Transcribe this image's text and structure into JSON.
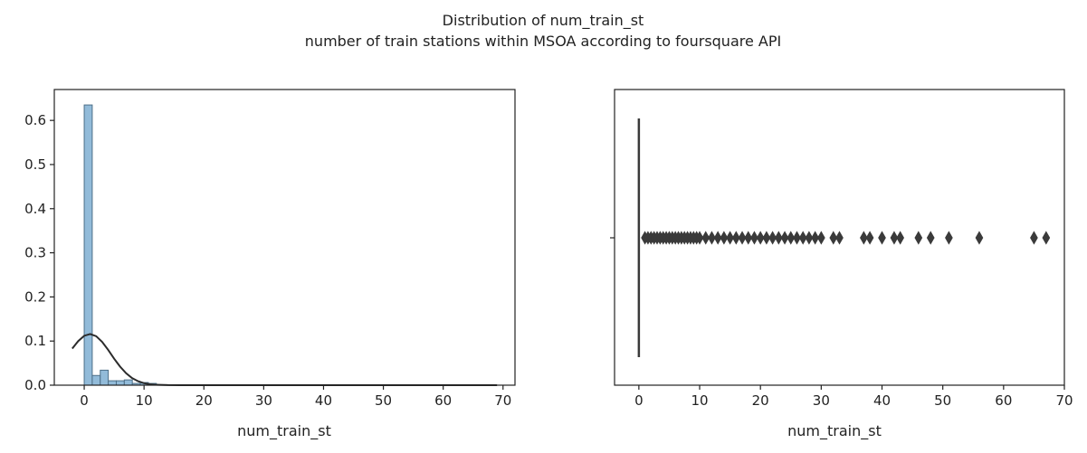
{
  "figure": {
    "title_line1": "Distribution of num_train_st",
    "title_line2": "number of train stations within MSOA according to foursquare API"
  },
  "chart_data": [
    {
      "type": "bar",
      "subtype": "histogram_with_kde",
      "xlabel": "num_train_st",
      "ylabel": "",
      "xlim": [
        -5,
        72
      ],
      "ylim": [
        0,
        0.67
      ],
      "xticks": [
        0,
        10,
        20,
        30,
        40,
        50,
        60,
        70
      ],
      "yticks": [
        0.0,
        0.1,
        0.2,
        0.3,
        0.4,
        0.5,
        0.6
      ],
      "bin_width": 1.34,
      "bins": [
        {
          "x0": 0.0,
          "x1": 1.34,
          "density": 0.635
        },
        {
          "x0": 1.34,
          "x1": 2.68,
          "density": 0.022
        },
        {
          "x0": 2.68,
          "x1": 4.02,
          "density": 0.034
        },
        {
          "x0": 4.02,
          "x1": 5.36,
          "density": 0.01
        },
        {
          "x0": 5.36,
          "x1": 6.7,
          "density": 0.01
        },
        {
          "x0": 6.7,
          "x1": 8.04,
          "density": 0.012
        },
        {
          "x0": 8.04,
          "x1": 9.38,
          "density": 0.004
        },
        {
          "x0": 9.38,
          "x1": 10.72,
          "density": 0.006
        },
        {
          "x0": 10.72,
          "x1": 12.06,
          "density": 0.004
        },
        {
          "x0": 12.06,
          "x1": 13.4,
          "density": 0.001
        },
        {
          "x0": 13.4,
          "x1": 14.74,
          "density": 0.001
        },
        {
          "x0": 14.74,
          "x1": 16.08,
          "density": 0.001
        },
        {
          "x0": 16.08,
          "x1": 17.42,
          "density": 0.0005
        },
        {
          "x0": 17.42,
          "x1": 18.76,
          "density": 0.0005
        },
        {
          "x0": 18.76,
          "x1": 20.1,
          "density": 0.0005
        },
        {
          "x0": 20.1,
          "x1": 21.44,
          "density": 0.0005
        },
        {
          "x0": 21.44,
          "x1": 22.78,
          "density": 0.0005
        },
        {
          "x0": 22.78,
          "x1": 24.12,
          "density": 0.0005
        },
        {
          "x0": 24.12,
          "x1": 25.46,
          "density": 0.0004
        },
        {
          "x0": 25.46,
          "x1": 26.8,
          "density": 0.0004
        },
        {
          "x0": 26.8,
          "x1": 28.14,
          "density": 0.0003
        },
        {
          "x0": 28.14,
          "x1": 29.48,
          "density": 0.0003
        },
        {
          "x0": 29.48,
          "x1": 30.82,
          "density": 0.0003
        },
        {
          "x0": 30.82,
          "x1": 32.16,
          "density": 0.0002
        },
        {
          "x0": 32.16,
          "x1": 33.5,
          "density": 0.0002
        },
        {
          "x0": 36.18,
          "x1": 37.52,
          "density": 0.0002
        },
        {
          "x0": 37.52,
          "x1": 38.86,
          "density": 0.0002
        },
        {
          "x0": 40.2,
          "x1": 41.54,
          "density": 0.0002
        },
        {
          "x0": 41.54,
          "x1": 42.88,
          "density": 0.0002
        },
        {
          "x0": 45.56,
          "x1": 46.9,
          "density": 0.0002
        },
        {
          "x0": 46.9,
          "x1": 48.24,
          "density": 0.0002
        },
        {
          "x0": 50.26,
          "x1": 51.6,
          "density": 0.0002
        },
        {
          "x0": 55.62,
          "x1": 56.96,
          "density": 0.0002
        },
        {
          "x0": 64.0,
          "x1": 65.34,
          "density": 0.0002
        },
        {
          "x0": 66.68,
          "x1": 68.02,
          "density": 0.0002
        }
      ],
      "kde": {
        "x": [
          -2,
          -1,
          0,
          1,
          2,
          3,
          4,
          5,
          6,
          7,
          8,
          9,
          10,
          11,
          12,
          14,
          16,
          20,
          30,
          40,
          50,
          60,
          69
        ],
        "y": [
          0.083,
          0.1,
          0.112,
          0.116,
          0.111,
          0.098,
          0.08,
          0.06,
          0.042,
          0.027,
          0.016,
          0.009,
          0.0045,
          0.002,
          0.0009,
          0.0002,
          0.0001,
          0.0,
          0.0,
          0.0,
          0.0,
          0.0,
          0.0
        ]
      },
      "colors": {
        "bar": "#92bbd9",
        "bar_edge": "#4d6f88",
        "kde": "#2b2b2b"
      }
    },
    {
      "type": "scatter",
      "subtype": "boxplot",
      "xlabel": "num_train_st",
      "xlim": [
        -4,
        70
      ],
      "xticks": [
        0,
        10,
        20,
        30,
        40,
        50,
        60,
        70
      ],
      "box": {
        "min": 0,
        "q1": 0,
        "median": 0,
        "q3": 0,
        "max": 0
      },
      "outliers": [
        1,
        1.5,
        2,
        2.5,
        3,
        3.5,
        4,
        4.5,
        5,
        5.5,
        6,
        6.5,
        7,
        7.5,
        8,
        8.5,
        9,
        9.5,
        10,
        11,
        12,
        13,
        14,
        15,
        16,
        17,
        18,
        19,
        20,
        21,
        22,
        23,
        24,
        25,
        26,
        27,
        28,
        29,
        30,
        32,
        33,
        37,
        38,
        40,
        42,
        43,
        46,
        48,
        51,
        56,
        65,
        67
      ],
      "colors": {
        "marker": "#3a3a3a",
        "line": "#3a3a3a"
      }
    }
  ]
}
